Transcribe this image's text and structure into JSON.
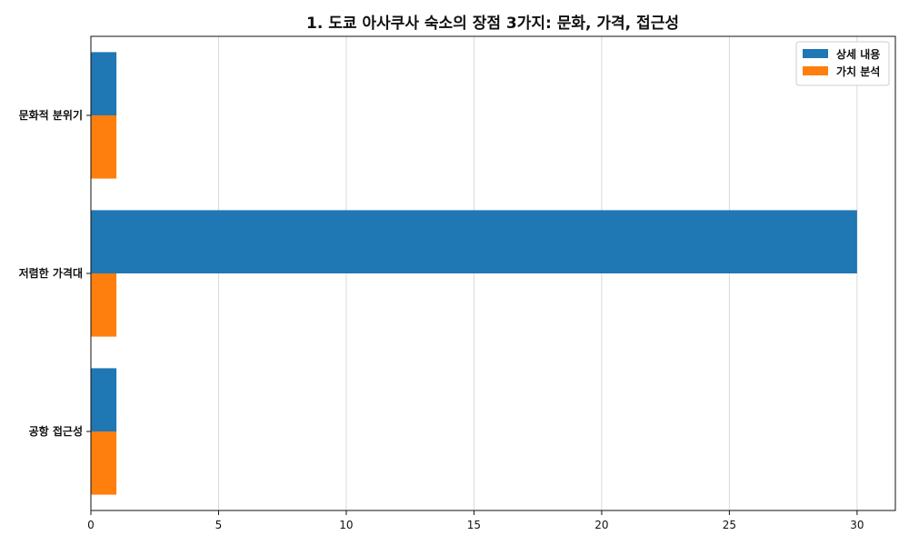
{
  "chart_data": {
    "type": "bar",
    "orientation": "horizontal",
    "title": "1. 도쿄 아사쿠사 숙소의 장점 3가지: 문화, 가격, 접근성",
    "categories": [
      "문화적 분위기",
      "저렴한 가격대",
      "공항 접근성"
    ],
    "series": [
      {
        "name": "상세 내용",
        "color": "#1f77b4",
        "values": [
          1,
          30,
          1
        ]
      },
      {
        "name": "가치 분석",
        "color": "#ff7f0e",
        "values": [
          1,
          1,
          1
        ]
      }
    ],
    "xlim": [
      0,
      31.5
    ],
    "xticks": [
      0,
      5,
      10,
      15,
      20,
      25,
      30
    ],
    "xlabel": "",
    "ylabel": "",
    "grid": "x",
    "legend_position": "top-right"
  }
}
